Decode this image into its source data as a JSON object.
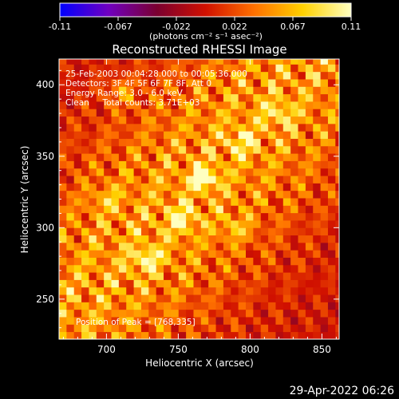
{
  "chart_data": {
    "type": "heatmap",
    "title": "Reconstructed RHESSI Image",
    "xlabel": "Heliocentric X (arcsec)",
    "ylabel": "Heliocentric Y (arcsec)",
    "xlim": [
      667,
      862
    ],
    "ylim": [
      222,
      418
    ],
    "xticks": [
      700,
      750,
      800,
      850
    ],
    "yticks": [
      250,
      300,
      350,
      400
    ],
    "colorbar": {
      "ticks": [
        "-0.11",
        "-0.067",
        "-0.022",
        "0.022",
        "0.067",
        "0.11"
      ],
      "min": -0.11,
      "max": 0.11,
      "units": "(photons cm⁻² s⁻¹ asec⁻²)"
    },
    "annotations": [
      "25-Feb-2003 00:04:28.000 to 00:05:36.000",
      "Detectors: 3F 4F 5F 6F 7F 8F, Att 0",
      "Energy Range: 3.0 - 6.0 keV",
      "Clean     Total counts: 3.71E+03"
    ],
    "peak_label": "Position of Peak = [768,335]",
    "peak": {
      "x": 768,
      "y": 335,
      "value": 0.11
    },
    "secondary_sources": [
      {
        "x": 752,
        "y": 306,
        "value": 0.09
      },
      {
        "x": 728,
        "y": 278,
        "value": 0.085
      },
      {
        "x": 795,
        "y": 360,
        "value": 0.07
      },
      {
        "x": 820,
        "y": 380,
        "value": 0.06
      },
      {
        "x": 710,
        "y": 395,
        "value": 0.055
      },
      {
        "x": 790,
        "y": 300,
        "value": 0.05
      },
      {
        "x": 700,
        "y": 320,
        "value": 0.045
      }
    ],
    "colors": {
      "background": "#000000",
      "colorbar_stops": [
        "#0000ff",
        "#7000c0",
        "#7a0030",
        "#d01000",
        "#ff7000",
        "#ffd000",
        "#ffffc0"
      ]
    }
  },
  "footer": {
    "timestamp": "29-Apr-2022 06:26"
  }
}
